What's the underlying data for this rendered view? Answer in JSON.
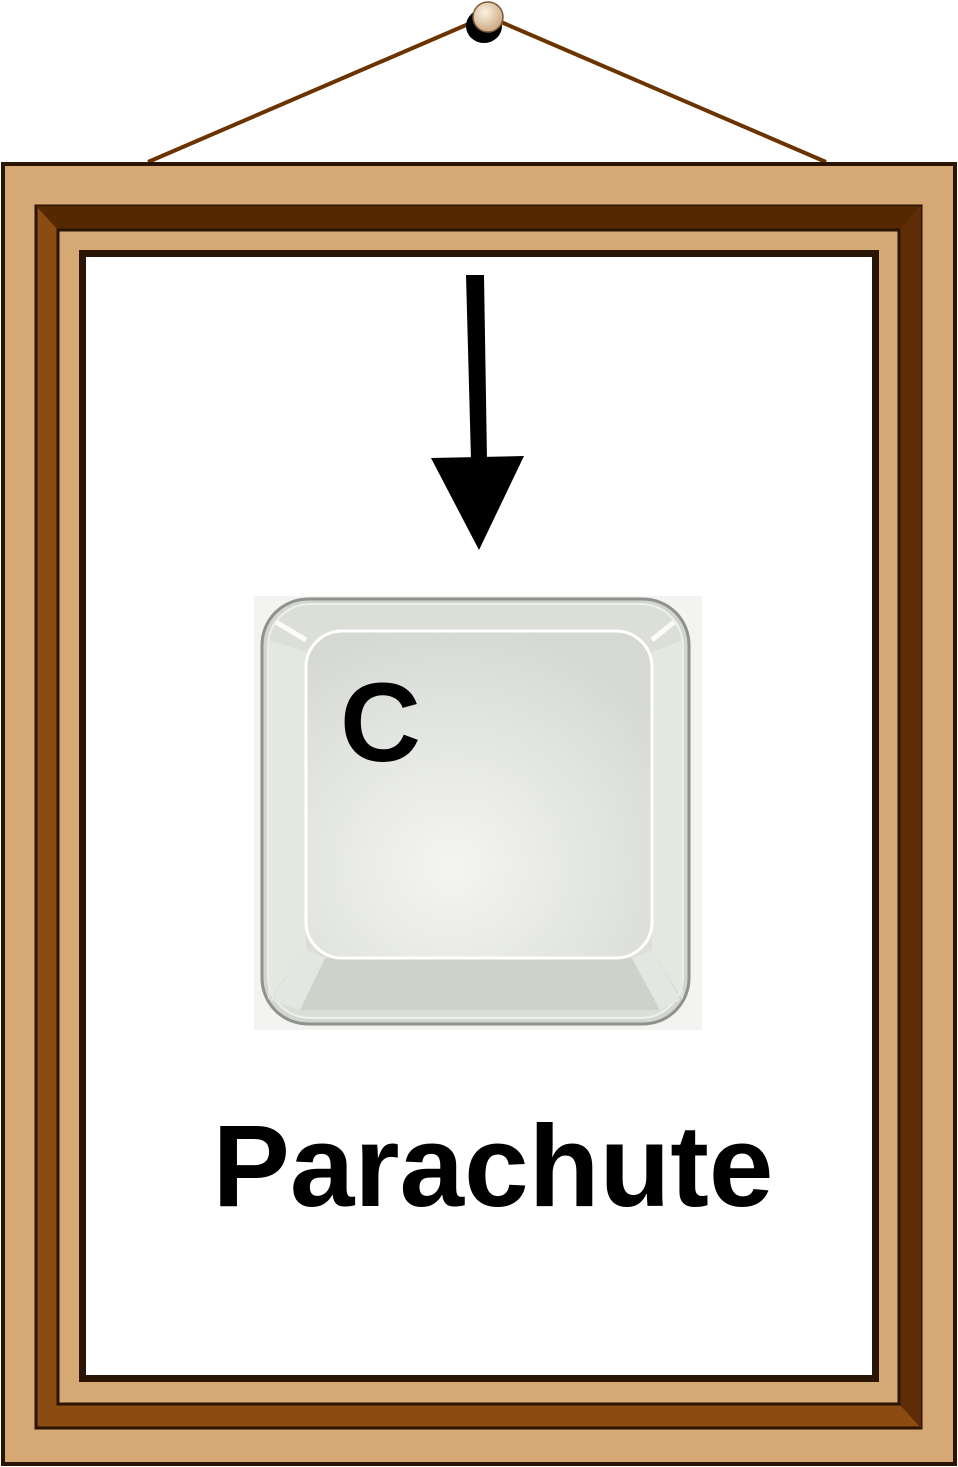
{
  "key": {
    "letter": "C",
    "icon": "keyboard-key"
  },
  "caption": "Parachute",
  "arrow": {
    "icon": "down-arrow-icon",
    "direction": "down"
  },
  "frame": {
    "icon": "picture-frame",
    "colors": {
      "outer_wood": "#d6a874",
      "dark_wood": "#8b4c12",
      "darkest_wood": "#552800",
      "outline": "#2a1505",
      "string": "#6b3300",
      "pin": "#e8d2b0"
    }
  }
}
